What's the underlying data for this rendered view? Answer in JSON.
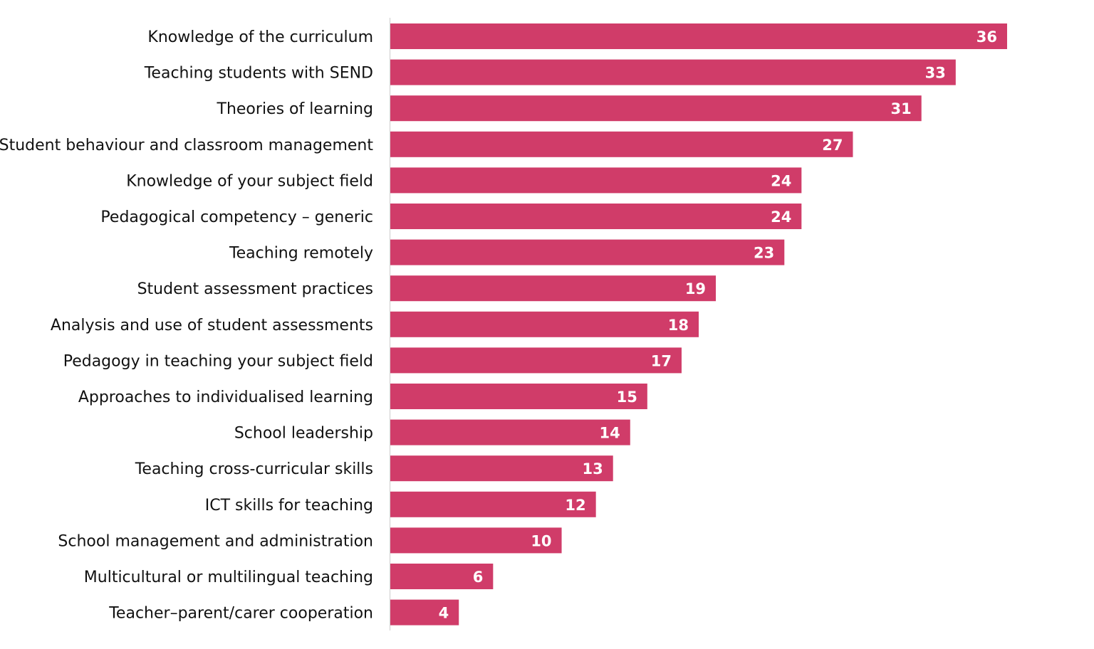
{
  "chart_data": {
    "type": "bar",
    "orientation": "horizontal",
    "categories": [
      "Knowledge of the curriculum",
      "Teaching students with SEND",
      "Theories of learning",
      "Student behaviour and classroom management",
      "Knowledge of your subject field",
      "Pedagogical competency – generic",
      "Teaching remotely",
      "Student assessment practices",
      "Analysis and use of student assessments",
      "Pedagogy in teaching your subject field",
      "Approaches to individualised learning",
      "School leadership",
      "Teaching cross-curricular skills",
      "ICT skills for teaching",
      "School management and administration",
      "Multicultural or multilingual teaching",
      "Teacher–parent/carer cooperation"
    ],
    "values": [
      36,
      33,
      31,
      27,
      24,
      24,
      23,
      19,
      18,
      17,
      15,
      14,
      13,
      12,
      10,
      6,
      4
    ],
    "data_labels": true,
    "xlim": [
      0,
      36
    ],
    "grid": false,
    "bar_color": "#D03C69",
    "title": "",
    "xlabel": "",
    "ylabel": ""
  }
}
